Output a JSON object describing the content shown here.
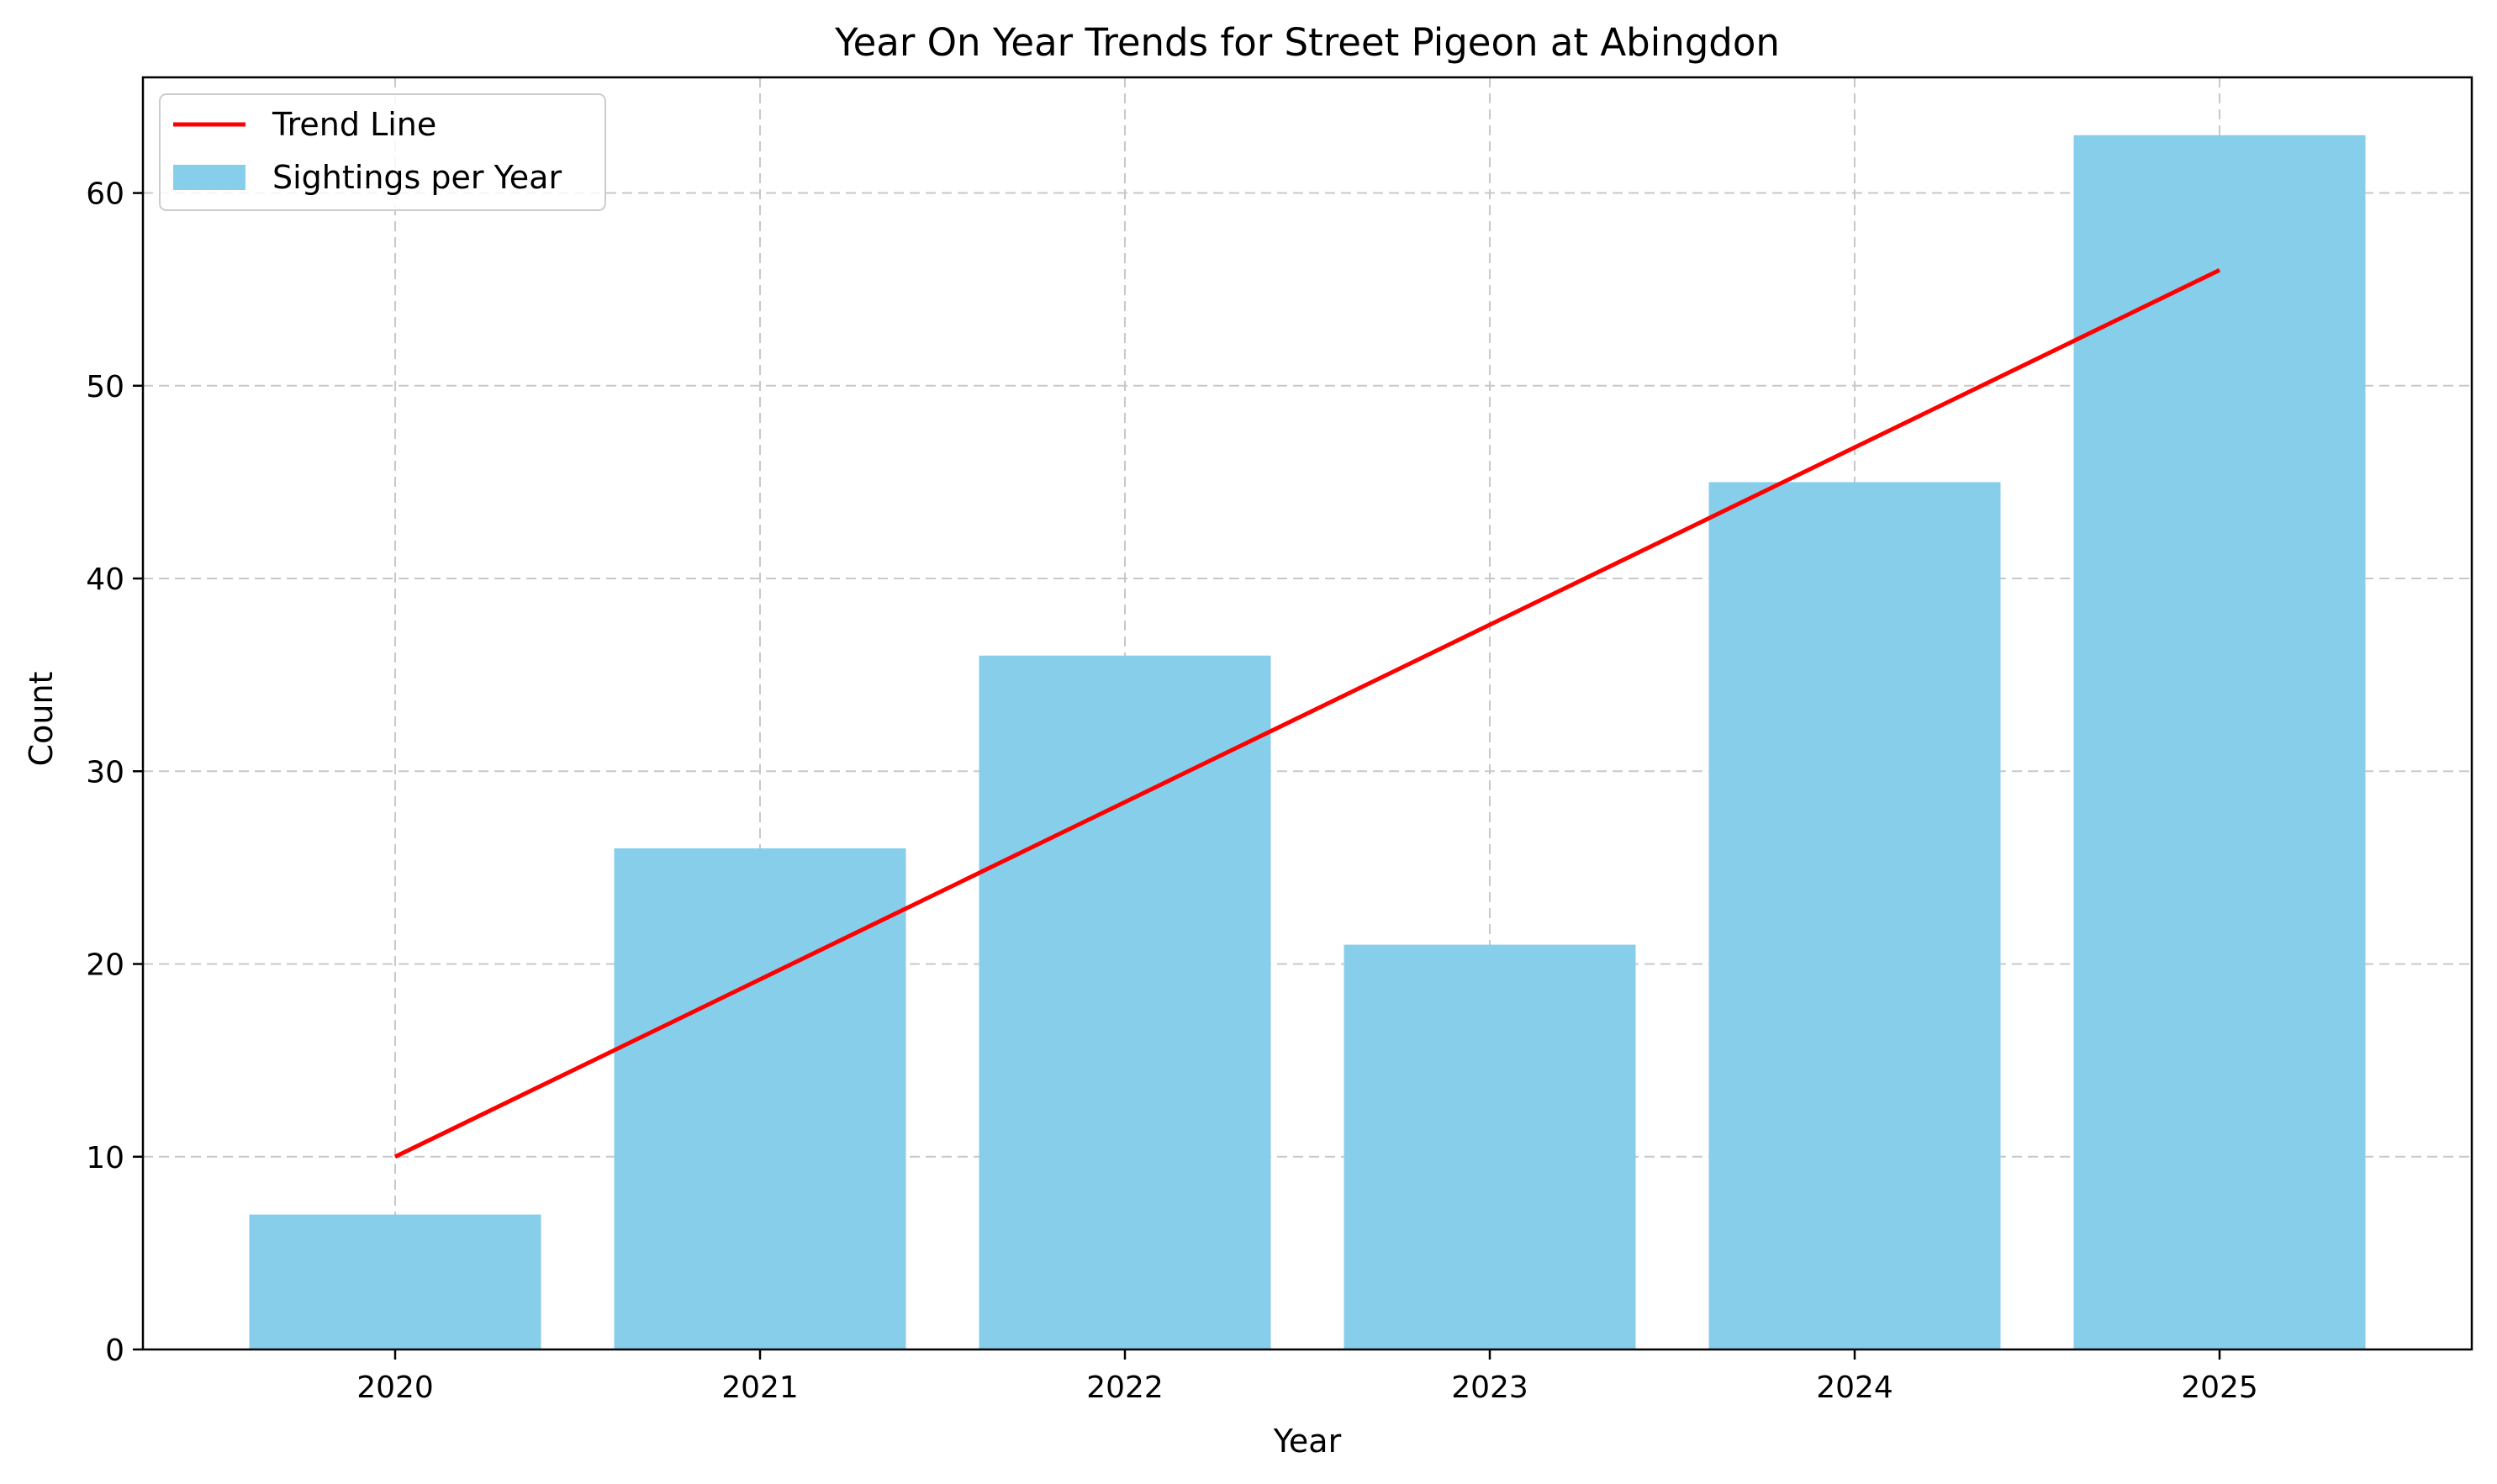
{
  "chart_data": {
    "type": "bar",
    "title": "Year On Year Trends for Street Pigeon at Abingdon",
    "xlabel": "Year",
    "ylabel": "Count",
    "categories": [
      "2020",
      "2021",
      "2022",
      "2023",
      "2024",
      "2025"
    ],
    "series": [
      {
        "name": "Sightings per Year",
        "kind": "bar",
        "color": "#87CEEB",
        "values": [
          7,
          26,
          36,
          21,
          45,
          63
        ]
      },
      {
        "name": "Trend Line",
        "kind": "line",
        "color": "#FF0000",
        "values": [
          10,
          19.2,
          28.4,
          37.6,
          46.8,
          56
        ]
      }
    ],
    "ylim": [
      0,
      66
    ],
    "yticks": [
      0,
      10,
      20,
      30,
      40,
      50,
      60
    ],
    "grid": true,
    "legend_position": "top-left"
  }
}
